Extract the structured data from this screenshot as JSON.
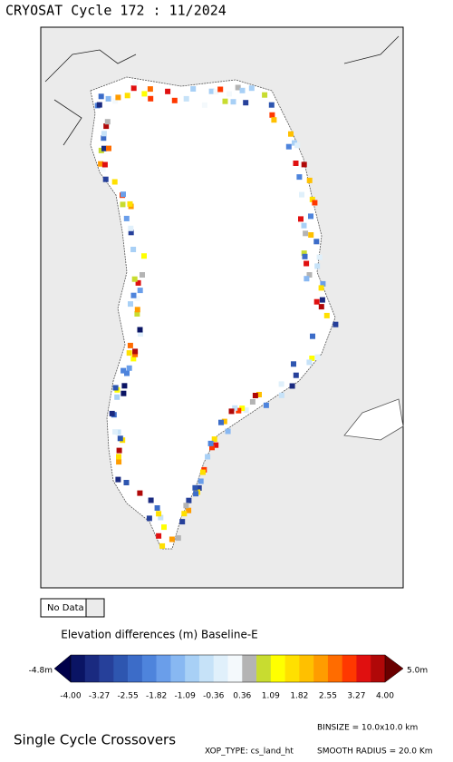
{
  "header": {
    "title": "CRYOSAT Cycle 172 : 11/2024"
  },
  "legend": {
    "no_data": "No Data",
    "colorbar_title": "Elevation differences (m) Baseline-E",
    "min_label": "-4.8m",
    "max_label": "5.0m",
    "tick_labels": [
      "-4.00",
      "-3.27",
      "-2.55",
      "-1.82",
      "-1.09",
      "-0.36",
      "0.36",
      "1.09",
      "1.82",
      "2.55",
      "3.27",
      "4.00"
    ],
    "colors": [
      "#0a1464",
      "#1a2a80",
      "#26409a",
      "#2e56b0",
      "#3c6cc8",
      "#4e84dc",
      "#6a9eea",
      "#88b8f2",
      "#a8d0f6",
      "#c6e2f8",
      "#e0f0fb",
      "#f4f9fc",
      "#b4b4b4",
      "#c8dc30",
      "#ffff00",
      "#ffe000",
      "#ffc000",
      "#ff9c00",
      "#ff6c00",
      "#ff3800",
      "#e01010",
      "#b00808"
    ],
    "under_color": "#00004a",
    "over_color": "#6a0000"
  },
  "footer": {
    "caption": "Single Cycle Crossovers",
    "binsize": "BINSIZE = 10.0x10.0 km",
    "xop_type": "XOP_TYPE: cs_land_ht",
    "smooth_radius": "SMOOTH RADIUS = 20.0 Km"
  }
}
